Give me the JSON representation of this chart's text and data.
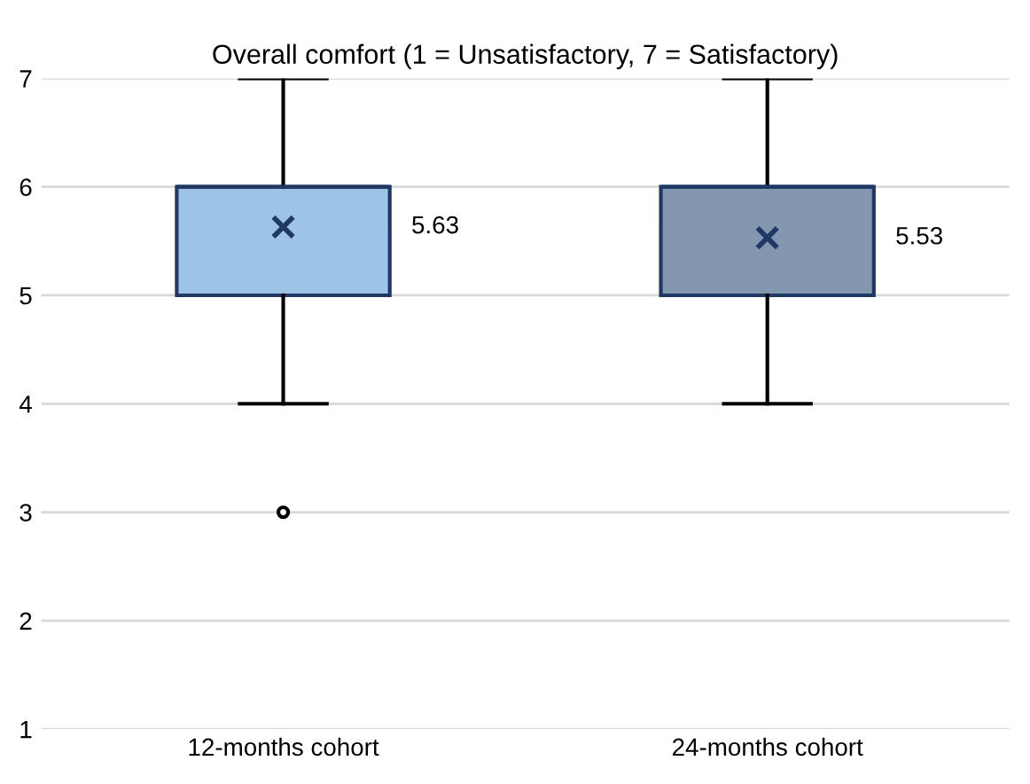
{
  "chart_data": {
    "type": "box",
    "title": "Overall comfort (1 = Unsatisfactory, 7 = Satisfactory)",
    "categories": [
      "12-months cohort",
      "24-months cohort"
    ],
    "boxes": [
      {
        "low": 4,
        "q1": 5,
        "median": 6,
        "q3": 6,
        "high": 7,
        "mean": 5.63,
        "outliers": [
          3
        ]
      },
      {
        "low": 4,
        "q1": 5,
        "median": 6,
        "q3": 6,
        "high": 7,
        "mean": 5.53
      }
    ],
    "colors": [
      "#9dc3e6",
      "#8497b0"
    ],
    "annotations": [
      "5.63",
      "5.53"
    ],
    "ylim": [
      1,
      7
    ],
    "yticks": [
      1,
      2,
      3,
      4,
      5,
      6,
      7
    ],
    "grid": "y",
    "marker": "cross"
  }
}
